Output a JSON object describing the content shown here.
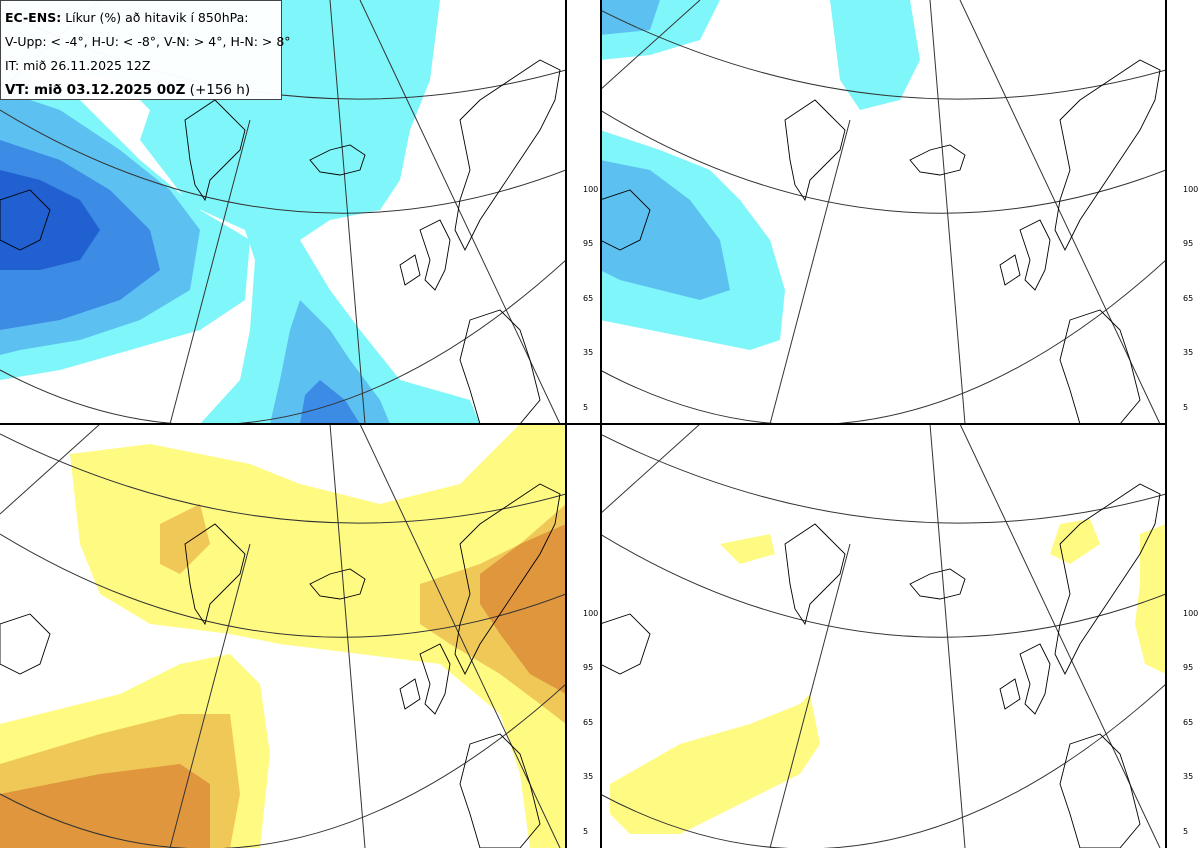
{
  "header": {
    "model": "EC-ENS:",
    "title": "Líkur (%) að hitavik í 850hPa:",
    "thresholds": "V-Upp: < -4°, H-U: < -8°, V-N: > 4°, H-N: > 8°",
    "init_time": "IT: mið 26.11.2025 12Z",
    "valid_label": "VT: mið 03.12.2025 00Z",
    "lead_time": "(+156 h)"
  },
  "colorbars": {
    "cold": {
      "ticks": [
        "100",
        "95",
        "65",
        "35",
        "5"
      ],
      "colors": [
        "#2060d0",
        "#3c8ce6",
        "#5cc0f0",
        "#7ff6fa"
      ]
    },
    "warm": {
      "ticks": [
        "100",
        "95",
        "65",
        "35",
        "5"
      ],
      "colors": [
        "#c8642c",
        "#e0963c",
        "#f0c858",
        "#fffa82"
      ]
    }
  },
  "panels": [
    {
      "id": "V-Upp",
      "variable": "cold anomaly < -4°"
    },
    {
      "id": "H-U",
      "variable": "cold anomaly < -8°"
    },
    {
      "id": "V-N",
      "variable": "warm anomaly > 4°"
    },
    {
      "id": "H-N",
      "variable": "warm anomaly > 8°"
    }
  ]
}
